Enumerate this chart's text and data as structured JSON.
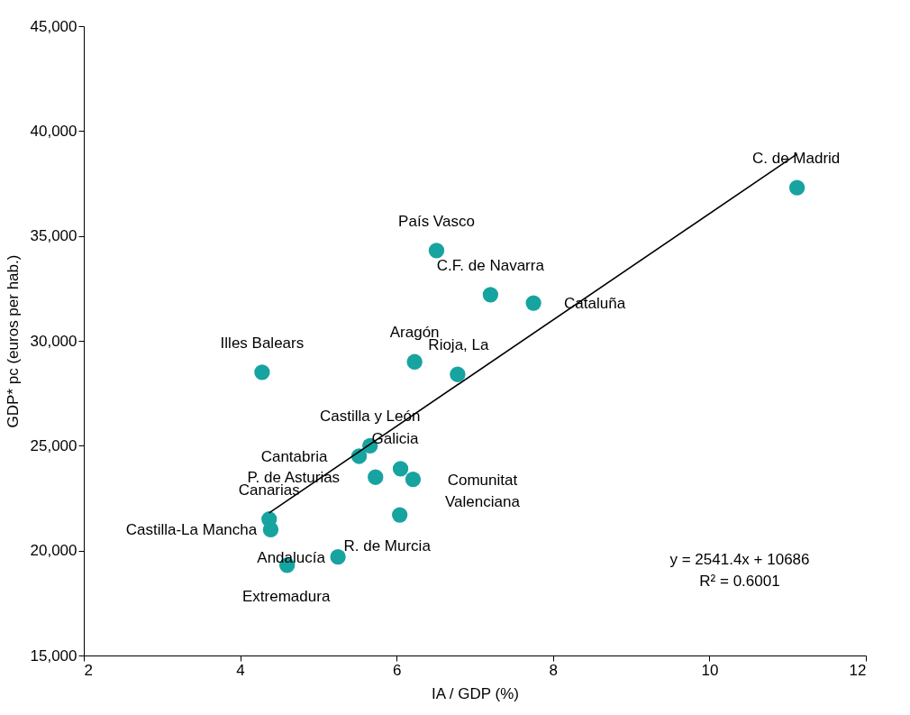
{
  "chart_data": {
    "type": "scatter",
    "xlabel": "IA / GDP (%)",
    "ylabel": "GDP* pc  (euros per hab.)",
    "xlim": [
      2,
      12
    ],
    "xticks": [
      2,
      4,
      6,
      8,
      10,
      12
    ],
    "ylim": [
      15000,
      45000
    ],
    "yticks": [
      {
        "value": 15000,
        "label": "15,000"
      },
      {
        "value": 20000,
        "label": "20,000"
      },
      {
        "value": 25000,
        "label": "25,000"
      },
      {
        "value": 30000,
        "label": "30,000"
      },
      {
        "value": 35000,
        "label": "35,000"
      },
      {
        "value": 40000,
        "label": "40,000"
      },
      {
        "value": 45000,
        "label": "45,000"
      }
    ],
    "grid": false,
    "marker": "circle",
    "series": [
      {
        "color": "#17a3a0",
        "x": [
          11.12,
          6.51,
          7.2,
          7.75,
          4.28,
          6.23,
          6.78,
          5.66,
          5.52,
          6.05,
          5.73,
          6.21,
          4.37,
          4.39,
          6.04,
          5.25,
          4.6
        ],
        "values": [
          37300,
          34300,
          32200,
          31800,
          28500,
          29000,
          28400,
          25000,
          24500,
          23900,
          23500,
          23400,
          21500,
          21000,
          21700,
          19700,
          19300
        ],
        "value_labels": [
          "C. de Madrid",
          "País Vasco",
          "C.F. de Navarra",
          "Cataluña",
          "Illes Balears",
          "Aragón",
          "Rioja, La",
          "Castilla y León",
          "Cantabria",
          "Galicia",
          "P. de Asturias",
          "Comunitat\nValenciana",
          "Canarias",
          "Castilla-La Mancha",
          "R. de Murcia",
          "Andalucía",
          "Extremadura"
        ]
      },
      {
        "type": "line",
        "color": "#000000",
        "marker": "none",
        "x": [
          4.37,
          11.12
        ],
        "values": [
          21800,
          38900
        ]
      }
    ],
    "annotations": [
      "y = 2541.4x + 10686\nR² = 0.6001"
    ]
  }
}
